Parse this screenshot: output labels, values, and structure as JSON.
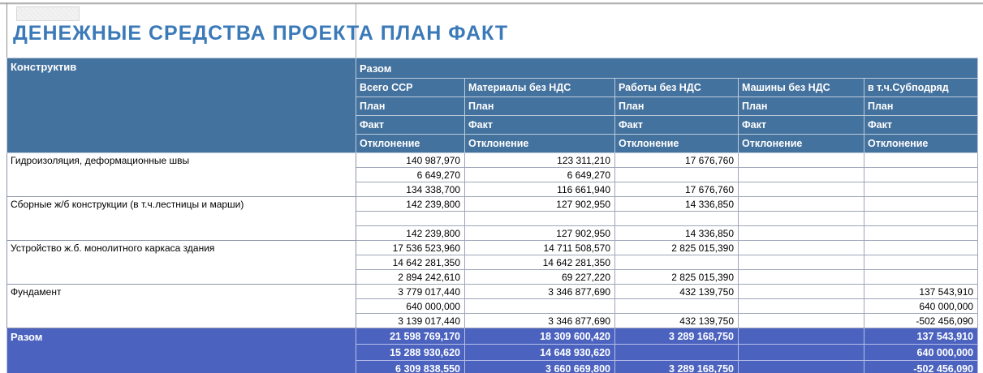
{
  "page": {
    "title": "ДЕНЕЖНЫЕ СРЕДСТВА ПРОЕКТА ПЛАН ФАКТ"
  },
  "colors": {
    "title_text": "#3b7ab8",
    "header_bg": "#44729e",
    "total_bg": "#4b63bf",
    "grid_border": "#9fa5b8"
  },
  "table": {
    "corner_header": "Конструктив",
    "band_header": "Разом",
    "columns": [
      "Всего ССР",
      "Материалы без НДС",
      "Работы без НДС",
      "Машины без НДС",
      "в т.ч.Субподряд"
    ],
    "measure_rows": [
      "План",
      "Факт",
      "Отклонение"
    ],
    "groups": [
      {
        "label": "Гидроизоляция, деформационные швы",
        "rows": [
          [
            "140 987,970",
            "123 311,210",
            "17 676,760",
            "",
            ""
          ],
          [
            "6 649,270",
            "6 649,270",
            "",
            "",
            ""
          ],
          [
            "134 338,700",
            "116 661,940",
            "17 676,760",
            "",
            ""
          ]
        ]
      },
      {
        "label": "Сборные ж/б конструкции (в т.ч.лестницы и марши)",
        "rows": [
          [
            "142 239,800",
            "127 902,950",
            "14 336,850",
            "",
            ""
          ],
          [
            "",
            "",
            "",
            "",
            ""
          ],
          [
            "142 239,800",
            "127 902,950",
            "14 336,850",
            "",
            ""
          ]
        ]
      },
      {
        "label": "Устройство ж.б. монолитного каркаса здания",
        "rows": [
          [
            "17 536 523,960",
            "14 711 508,570",
            "2 825 015,390",
            "",
            ""
          ],
          [
            "14 642 281,350",
            "14 642 281,350",
            "",
            "",
            ""
          ],
          [
            "2 894 242,610",
            "69 227,220",
            "2 825 015,390",
            "",
            ""
          ]
        ]
      },
      {
        "label": "Фундамент",
        "rows": [
          [
            "3 779 017,440",
            "3 346 877,690",
            "432 139,750",
            "",
            "137 543,910"
          ],
          [
            "640 000,000",
            "",
            "",
            "",
            "640 000,000"
          ],
          [
            "3 139 017,440",
            "3 346 877,690",
            "432 139,750",
            "",
            "-502 456,090"
          ]
        ]
      }
    ],
    "total": {
      "label": "Разом",
      "rows": [
        [
          "21 598 769,170",
          "18 309 600,420",
          "3 289 168,750",
          "",
          "137 543,910"
        ],
        [
          "15 288 930,620",
          "14 648 930,620",
          "",
          "",
          "640 000,000"
        ],
        [
          "6 309 838,550",
          "3 660 669,800",
          "3 289 168,750",
          "",
          "-502 456,090"
        ]
      ]
    }
  }
}
